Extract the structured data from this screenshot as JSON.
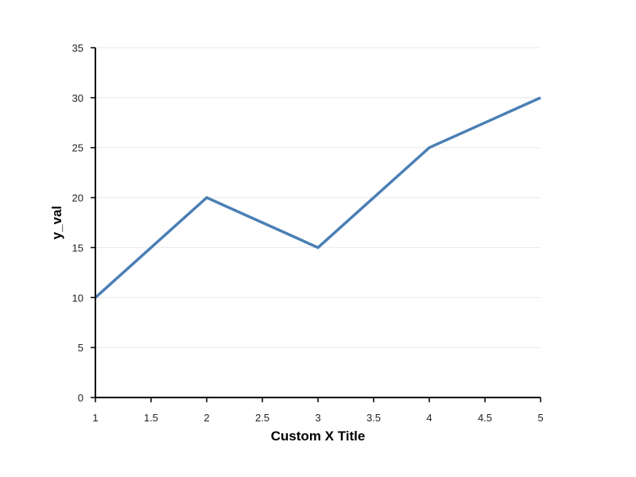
{
  "chart_data": {
    "type": "line",
    "title": "",
    "xlabel": "Custom X Title",
    "ylabel": "y_val",
    "xlim": [
      1,
      5
    ],
    "ylim": [
      0,
      35
    ],
    "x_ticks": [
      "1",
      "1.5",
      "2",
      "2.5",
      "3",
      "3.5",
      "4",
      "4.5",
      "5"
    ],
    "y_ticks": [
      "0",
      "5",
      "10",
      "15",
      "20",
      "25",
      "30",
      "35"
    ],
    "grid": "horizontal",
    "legend": "none",
    "series": [
      {
        "color": "#4a7fb5",
        "x": [
          1,
          2,
          3,
          4,
          5
        ],
        "values": [
          10,
          20,
          15,
          25,
          30
        ]
      }
    ]
  }
}
